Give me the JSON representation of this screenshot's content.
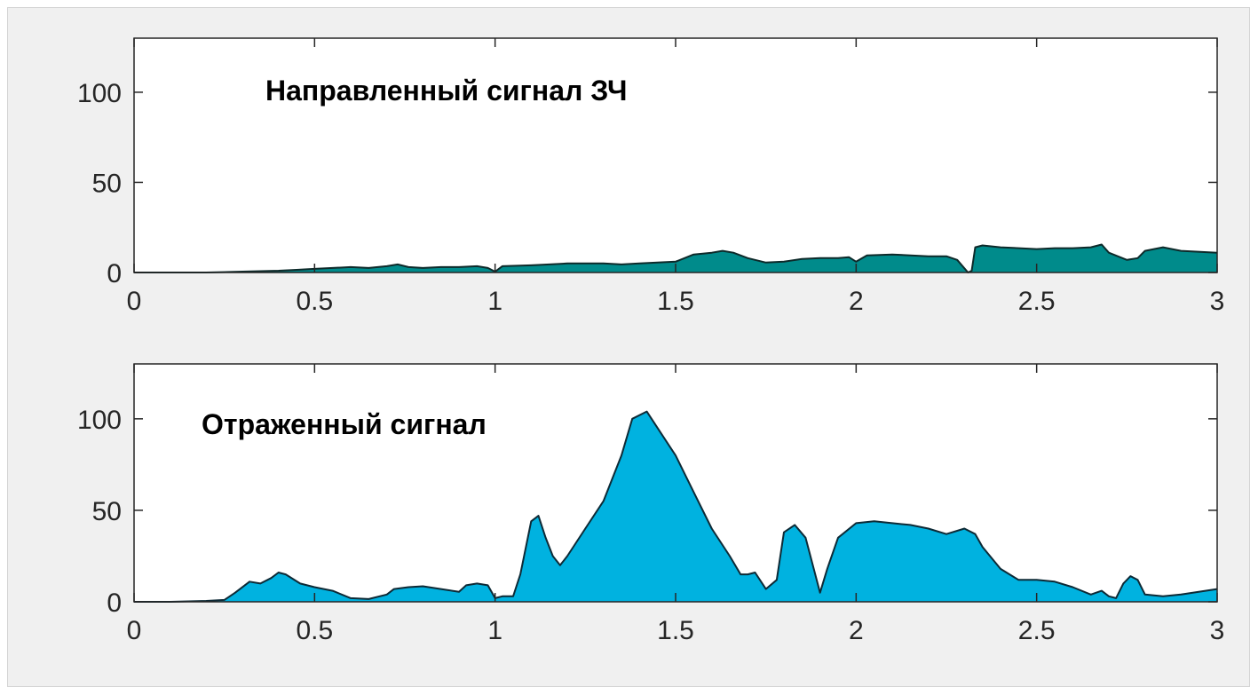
{
  "chart_data": [
    {
      "type": "area",
      "title": "Направленный сигнал ЗЧ",
      "xlabel": "",
      "ylabel": "",
      "xlim": [
        0,
        3
      ],
      "ylim": [
        0,
        130
      ],
      "x_ticks": [
        0,
        0.5,
        1,
        1.5,
        2,
        2.5,
        3
      ],
      "x_tick_labels": [
        "0",
        "0.5",
        "1",
        "1.5",
        "2",
        "2.5",
        "3"
      ],
      "y_ticks": [
        0,
        50,
        100
      ],
      "y_tick_labels": [
        "0",
        "50",
        "100"
      ],
      "fill_color": "#008b8b",
      "line_color": "#0d2a2a",
      "grid": false,
      "series": [
        {
          "x": [
            0,
            0.05,
            0.1,
            0.2,
            0.3,
            0.4,
            0.45,
            0.5,
            0.55,
            0.6,
            0.65,
            0.7,
            0.73,
            0.76,
            0.8,
            0.85,
            0.9,
            0.95,
            0.98,
            1.0,
            1.02,
            1.1,
            1.15,
            1.2,
            1.3,
            1.35,
            1.4,
            1.45,
            1.5,
            1.55,
            1.6,
            1.63,
            1.66,
            1.7,
            1.75,
            1.8,
            1.85,
            1.9,
            1.95,
            1.98,
            2.0,
            2.03,
            2.1,
            2.2,
            2.25,
            2.28,
            2.31,
            2.32,
            2.33,
            2.35,
            2.4,
            2.5,
            2.55,
            2.6,
            2.65,
            2.68,
            2.7,
            2.75,
            2.78,
            2.8,
            2.85,
            2.9,
            3.0
          ],
          "y": [
            0,
            0,
            0,
            0,
            0.5,
            1,
            1.5,
            2,
            2.5,
            3,
            2.5,
            3.5,
            4.5,
            3,
            2.5,
            3,
            3,
            3.5,
            2.5,
            0.5,
            3.5,
            4,
            4.5,
            5,
            5,
            4.5,
            5,
            5.5,
            6,
            10,
            11,
            12,
            11,
            8,
            5.5,
            6,
            7.5,
            8,
            8,
            8.5,
            6,
            9.5,
            10,
            9,
            9,
            7,
            0,
            1,
            14,
            15,
            14,
            13,
            13.5,
            13.5,
            14,
            15.5,
            11,
            7,
            8,
            12,
            14,
            12,
            11
          ]
        }
      ]
    },
    {
      "type": "area",
      "title": "Отраженный сигнал",
      "xlabel": "",
      "ylabel": "",
      "xlim": [
        0,
        3
      ],
      "ylim": [
        0,
        130
      ],
      "x_ticks": [
        0,
        0.5,
        1,
        1.5,
        2,
        2.5,
        3
      ],
      "x_tick_labels": [
        "0",
        "0.5",
        "1",
        "1.5",
        "2",
        "2.5",
        "3"
      ],
      "y_ticks": [
        0,
        50,
        100
      ],
      "y_tick_labels": [
        "0",
        "50",
        "100"
      ],
      "fill_color": "#00b2e0",
      "line_color": "#0d2a36",
      "grid": false,
      "series": [
        {
          "x": [
            0,
            0.1,
            0.2,
            0.25,
            0.28,
            0.32,
            0.35,
            0.38,
            0.4,
            0.42,
            0.46,
            0.5,
            0.55,
            0.6,
            0.65,
            0.7,
            0.72,
            0.76,
            0.8,
            0.85,
            0.9,
            0.92,
            0.95,
            0.98,
            1.0,
            1.02,
            1.05,
            1.07,
            1.1,
            1.12,
            1.14,
            1.16,
            1.18,
            1.2,
            1.25,
            1.3,
            1.35,
            1.38,
            1.42,
            1.45,
            1.5,
            1.55,
            1.6,
            1.65,
            1.68,
            1.7,
            1.72,
            1.75,
            1.78,
            1.8,
            1.83,
            1.86,
            1.9,
            1.92,
            1.95,
            2.0,
            2.05,
            2.1,
            2.15,
            2.2,
            2.25,
            2.3,
            2.33,
            2.35,
            2.4,
            2.45,
            2.5,
            2.55,
            2.6,
            2.65,
            2.68,
            2.7,
            2.72,
            2.74,
            2.76,
            2.78,
            2.8,
            2.85,
            2.9,
            3.0
          ],
          "y": [
            0,
            0,
            0.5,
            1,
            5,
            11,
            10,
            13,
            16,
            15,
            10,
            8,
            6,
            2,
            1.5,
            4,
            7,
            8,
            8.5,
            7,
            5.5,
            9,
            10,
            9,
            2,
            3,
            3,
            15,
            44,
            47,
            35,
            25,
            20,
            25,
            40,
            55,
            80,
            100,
            104,
            95,
            80,
            60,
            40,
            25,
            15,
            15,
            16,
            7,
            12,
            38,
            42,
            35,
            5,
            18,
            35,
            43,
            44,
            43,
            42,
            40,
            37,
            40,
            37,
            30,
            18,
            12,
            12,
            11,
            8,
            4,
            6,
            3,
            2,
            10,
            14,
            12,
            4,
            3,
            4,
            7
          ]
        }
      ]
    }
  ]
}
